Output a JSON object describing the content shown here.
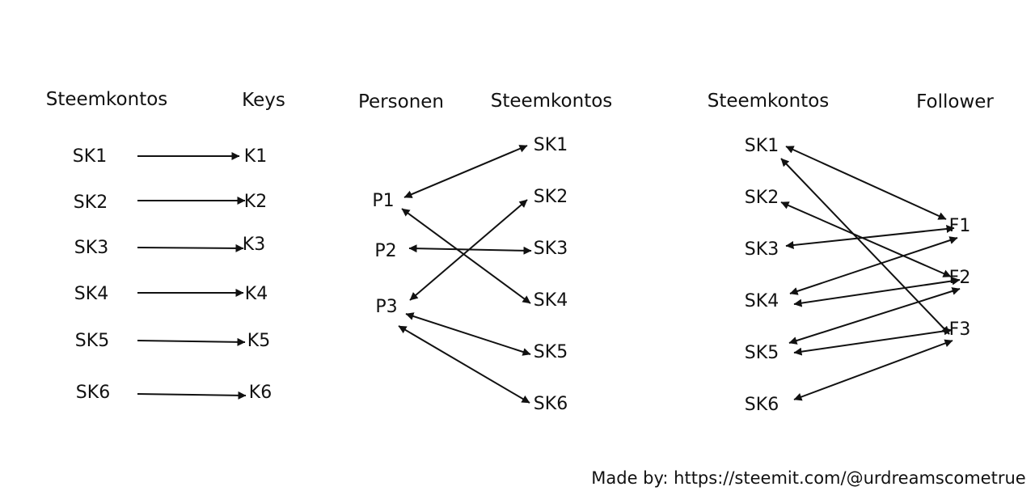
{
  "panels": [
    {
      "id": "keys",
      "headers": [
        "Steemkontos",
        "Keys"
      ],
      "left_nodes": [
        "SK1",
        "SK2",
        "SK3",
        "SK4",
        "SK5",
        "SK6"
      ],
      "right_nodes": [
        "K1",
        "K2",
        "K3",
        "K4",
        "K5",
        "K6"
      ],
      "edges": [
        {
          "from": "SK1",
          "to": "K1",
          "direction": "forward"
        },
        {
          "from": "SK2",
          "to": "K2",
          "direction": "forward"
        },
        {
          "from": "SK3",
          "to": "K3",
          "direction": "forward"
        },
        {
          "from": "SK4",
          "to": "K4",
          "direction": "forward"
        },
        {
          "from": "SK5",
          "to": "K5",
          "direction": "forward"
        },
        {
          "from": "SK6",
          "to": "K6",
          "direction": "forward"
        }
      ]
    },
    {
      "id": "persons",
      "headers": [
        "Personen",
        "Steemkontos"
      ],
      "left_nodes": [
        "P1",
        "P2",
        "P3"
      ],
      "right_nodes": [
        "SK1",
        "SK2",
        "SK3",
        "SK4",
        "SK5",
        "SK6"
      ],
      "edges": [
        {
          "from": "P1",
          "to": "SK1",
          "direction": "both"
        },
        {
          "from": "P1",
          "to": "SK4",
          "direction": "both"
        },
        {
          "from": "P2",
          "to": "SK3",
          "direction": "both"
        },
        {
          "from": "P3",
          "to": "SK2",
          "direction": "both"
        },
        {
          "from": "P3",
          "to": "SK5",
          "direction": "both"
        },
        {
          "from": "P3",
          "to": "SK6",
          "direction": "both"
        }
      ]
    },
    {
      "id": "followers",
      "headers": [
        "Steemkontos",
        "Follower"
      ],
      "left_nodes": [
        "SK1",
        "SK2",
        "SK3",
        "SK4",
        "SK5",
        "SK6"
      ],
      "right_nodes": [
        "F1",
        "F2",
        "F3"
      ],
      "edges": [
        {
          "from": "SK1",
          "to": "F1",
          "direction": "both"
        },
        {
          "from": "SK1",
          "to": "F3",
          "direction": "both"
        },
        {
          "from": "SK2",
          "to": "F2",
          "direction": "both"
        },
        {
          "from": "SK3",
          "to": "F1",
          "direction": "both"
        },
        {
          "from": "SK4",
          "to": "F1",
          "direction": "both"
        },
        {
          "from": "SK4",
          "to": "F2",
          "direction": "both"
        },
        {
          "from": "SK5",
          "to": "F2",
          "direction": "both"
        },
        {
          "from": "SK5",
          "to": "F3",
          "direction": "both"
        },
        {
          "from": "SK6",
          "to": "F3",
          "direction": "both"
        }
      ]
    }
  ],
  "credit": "Made by: https://steemit.com/@urdreamscometrue",
  "colors": {
    "ink": "#111111",
    "background": "#ffffff"
  }
}
